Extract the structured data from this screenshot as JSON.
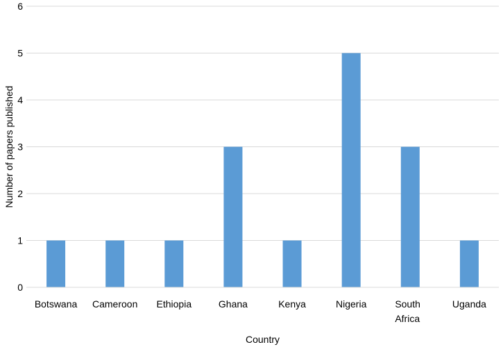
{
  "chart_data": {
    "type": "bar",
    "categories": [
      "Botswana",
      "Cameroon",
      "Ethiopia",
      "Ghana",
      "Kenya",
      "Nigeria",
      "South Africa",
      "Uganda"
    ],
    "category_lines": [
      [
        "Botswana"
      ],
      [
        "Cameroon"
      ],
      [
        "Ethiopia"
      ],
      [
        "Ghana"
      ],
      [
        "Kenya"
      ],
      [
        "Nigeria"
      ],
      [
        "South",
        "Africa"
      ],
      [
        "Uganda"
      ]
    ],
    "values": [
      1,
      1,
      1,
      3,
      1,
      5,
      3,
      1
    ],
    "xlabel": "Country",
    "ylabel": "Number of papers published",
    "ylim": [
      0,
      6
    ],
    "yticks": [
      "0",
      "1",
      "2",
      "3",
      "4",
      "5",
      "6"
    ],
    "grid": "horizontal",
    "legend": "none",
    "bar_color": "#5b9bd5",
    "grid_color": "#d9d9d9"
  }
}
